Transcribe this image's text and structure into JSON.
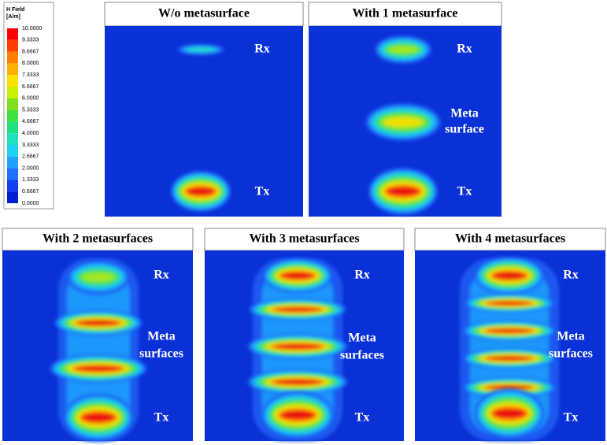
{
  "legend": {
    "title": "H Field",
    "unit": "[A/m]",
    "labels": [
      "10.0000",
      "9.3333",
      "8.6667",
      "8.0000",
      "7.3333",
      "6.6667",
      "6.0000",
      "5.3333",
      "4.6667",
      "4.0000",
      "3.3333",
      "2.6667",
      "2.0000",
      "1.3333",
      "0.6667",
      "0.0000"
    ]
  },
  "panels": [
    {
      "title": "W/o metasurface",
      "rx": "Rx",
      "tx": "Tx"
    },
    {
      "title": "With 1 metasurface",
      "rx": "Rx",
      "meta": [
        "Meta",
        "surface"
      ],
      "tx": "Tx"
    },
    {
      "title": "With 2 metasurfaces",
      "rx": "Rx",
      "meta": [
        "Meta",
        "surfaces"
      ],
      "tx": "Tx"
    },
    {
      "title": "With 3 metasurfaces",
      "rx": "Rx",
      "meta": [
        "Meta",
        "surfaces"
      ],
      "tx": "Tx"
    },
    {
      "title": "With 4 metasurfaces",
      "rx": "Rx",
      "meta": [
        "Meta",
        "surfaces"
      ],
      "tx": "Tx"
    }
  ]
}
